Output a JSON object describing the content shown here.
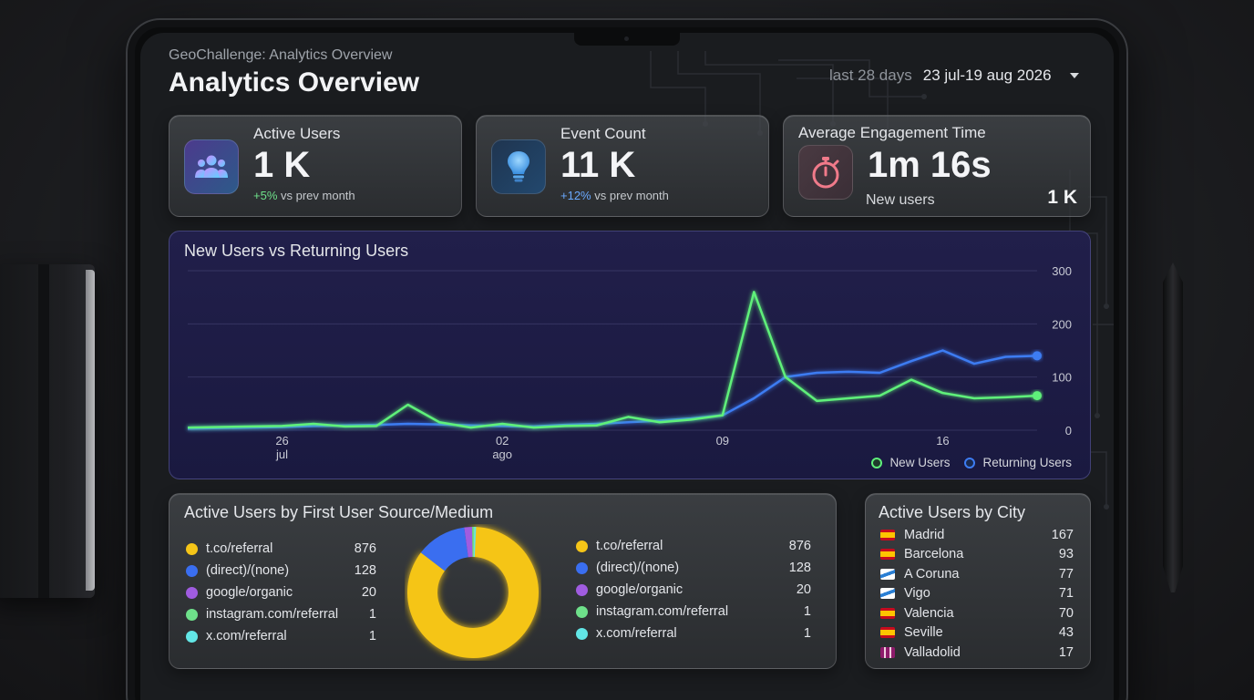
{
  "header": {
    "subtitle": "GeoChallenge: Analytics Overview",
    "title": "Analytics Overview",
    "date_prefix": "last 28 days",
    "date_range": "23 jul-19 aug 2026"
  },
  "kpis": [
    {
      "label": "Active Users",
      "value": "1 K",
      "change": "+5%",
      "change_suffix": " vs prev month",
      "icon": "users-icon",
      "change_color": "#6ee08a"
    },
    {
      "label": "Event Count",
      "value": "11 K",
      "change": "+12%",
      "change_suffix": " vs prev month",
      "icon": "lightbulb-icon",
      "change_color": "#6aa9ff"
    },
    {
      "label": "Average Engagement Time",
      "value": "1m 16s",
      "sub_label": "New users",
      "sub_value": "1 K",
      "icon": "stopwatch-icon"
    }
  ],
  "line_chart": {
    "title": "New Users vs Returning Users",
    "legend": [
      "New Users",
      "Returning Users"
    ]
  },
  "chart_data": [
    {
      "type": "line",
      "title": "New Users vs Returning Users",
      "x": [
        "23 jul",
        "24 jul",
        "25 jul",
        "26 jul",
        "27 jul",
        "28 jul",
        "29 jul",
        "30 jul",
        "31 jul",
        "01 ago",
        "02 ago",
        "03 ago",
        "04 ago",
        "05 ago",
        "06 ago",
        "07 ago",
        "08 ago",
        "09 ago",
        "10 ago",
        "11 ago",
        "12 ago",
        "13 ago",
        "14 ago",
        "15 ago",
        "16 ago",
        "17 ago",
        "18 ago",
        "19 ago"
      ],
      "x_tick_labels": [
        {
          "label": "26",
          "sub": "jul",
          "at": "26 jul"
        },
        {
          "label": "02",
          "sub": "ago",
          "at": "02 ago"
        },
        {
          "label": "09",
          "sub": "",
          "at": "09 ago"
        },
        {
          "label": "16",
          "sub": "",
          "at": "16 ago"
        }
      ],
      "series": [
        {
          "name": "New Users",
          "color": "#5ff07a",
          "values": [
            5,
            6,
            7,
            8,
            12,
            7,
            8,
            48,
            15,
            5,
            12,
            5,
            8,
            9,
            25,
            15,
            20,
            28,
            260,
            100,
            55,
            60,
            65,
            95,
            70,
            60,
            62,
            65
          ]
        },
        {
          "name": "Returning Users",
          "color": "#3d7cf2",
          "values": [
            3,
            4,
            5,
            6,
            8,
            9,
            10,
            12,
            11,
            9,
            8,
            7,
            10,
            12,
            15,
            18,
            22,
            28,
            60,
            100,
            108,
            110,
            108,
            130,
            150,
            125,
            138,
            140
          ]
        }
      ],
      "y_ticks": [
        0,
        100,
        200,
        300
      ],
      "ylim": [
        0,
        300
      ],
      "grid": true,
      "legend_position": "bottom-right"
    },
    {
      "type": "pie",
      "title": "Active Users by First User Source/Medium",
      "categories": [
        "t.co/referral",
        "(direct)/(none)",
        "google/organic",
        "instagram.com/referral",
        "x.com/referral"
      ],
      "values": [
        876,
        128,
        20,
        1,
        1
      ],
      "colors": [
        "#f5c518",
        "#3a6ef0",
        "#a05ce0",
        "#6ee08a",
        "#62e6e6"
      ]
    },
    {
      "type": "table",
      "title": "Active Users by City",
      "categories": [
        "Madrid",
        "Barcelona",
        "A Coruna",
        "Vigo",
        "Valencia",
        "Seville",
        "Valladolid"
      ],
      "values": [
        167,
        93,
        77,
        71,
        70,
        43,
        17
      ]
    }
  ],
  "sources": {
    "title": "Active Users by First User Source/Medium",
    "items": [
      {
        "label": "t.co/referral",
        "value": "876",
        "color": "#f5c518"
      },
      {
        "label": "(direct)/(none)",
        "value": "128",
        "color": "#3a6ef0"
      },
      {
        "label": "google/organic",
        "value": "20",
        "color": "#a05ce0"
      },
      {
        "label": "instagram.com/referral",
        "value": "1",
        "color": "#6ee08a"
      },
      {
        "label": "x.com/referral",
        "value": "1",
        "color": "#62e6e6"
      }
    ]
  },
  "cities": {
    "title": "Active Users by City",
    "items": [
      {
        "label": "Madrid",
        "value": "167",
        "flag": "es"
      },
      {
        "label": "Barcelona",
        "value": "93",
        "flag": "es"
      },
      {
        "label": "A Coruna",
        "value": "77",
        "flag": "gal"
      },
      {
        "label": "Vigo",
        "value": "71",
        "flag": "gal"
      },
      {
        "label": "Valencia",
        "value": "70",
        "flag": "es"
      },
      {
        "label": "Seville",
        "value": "43",
        "flag": "es"
      },
      {
        "label": "Valladolid",
        "value": "17",
        "flag": "cyl"
      }
    ]
  }
}
